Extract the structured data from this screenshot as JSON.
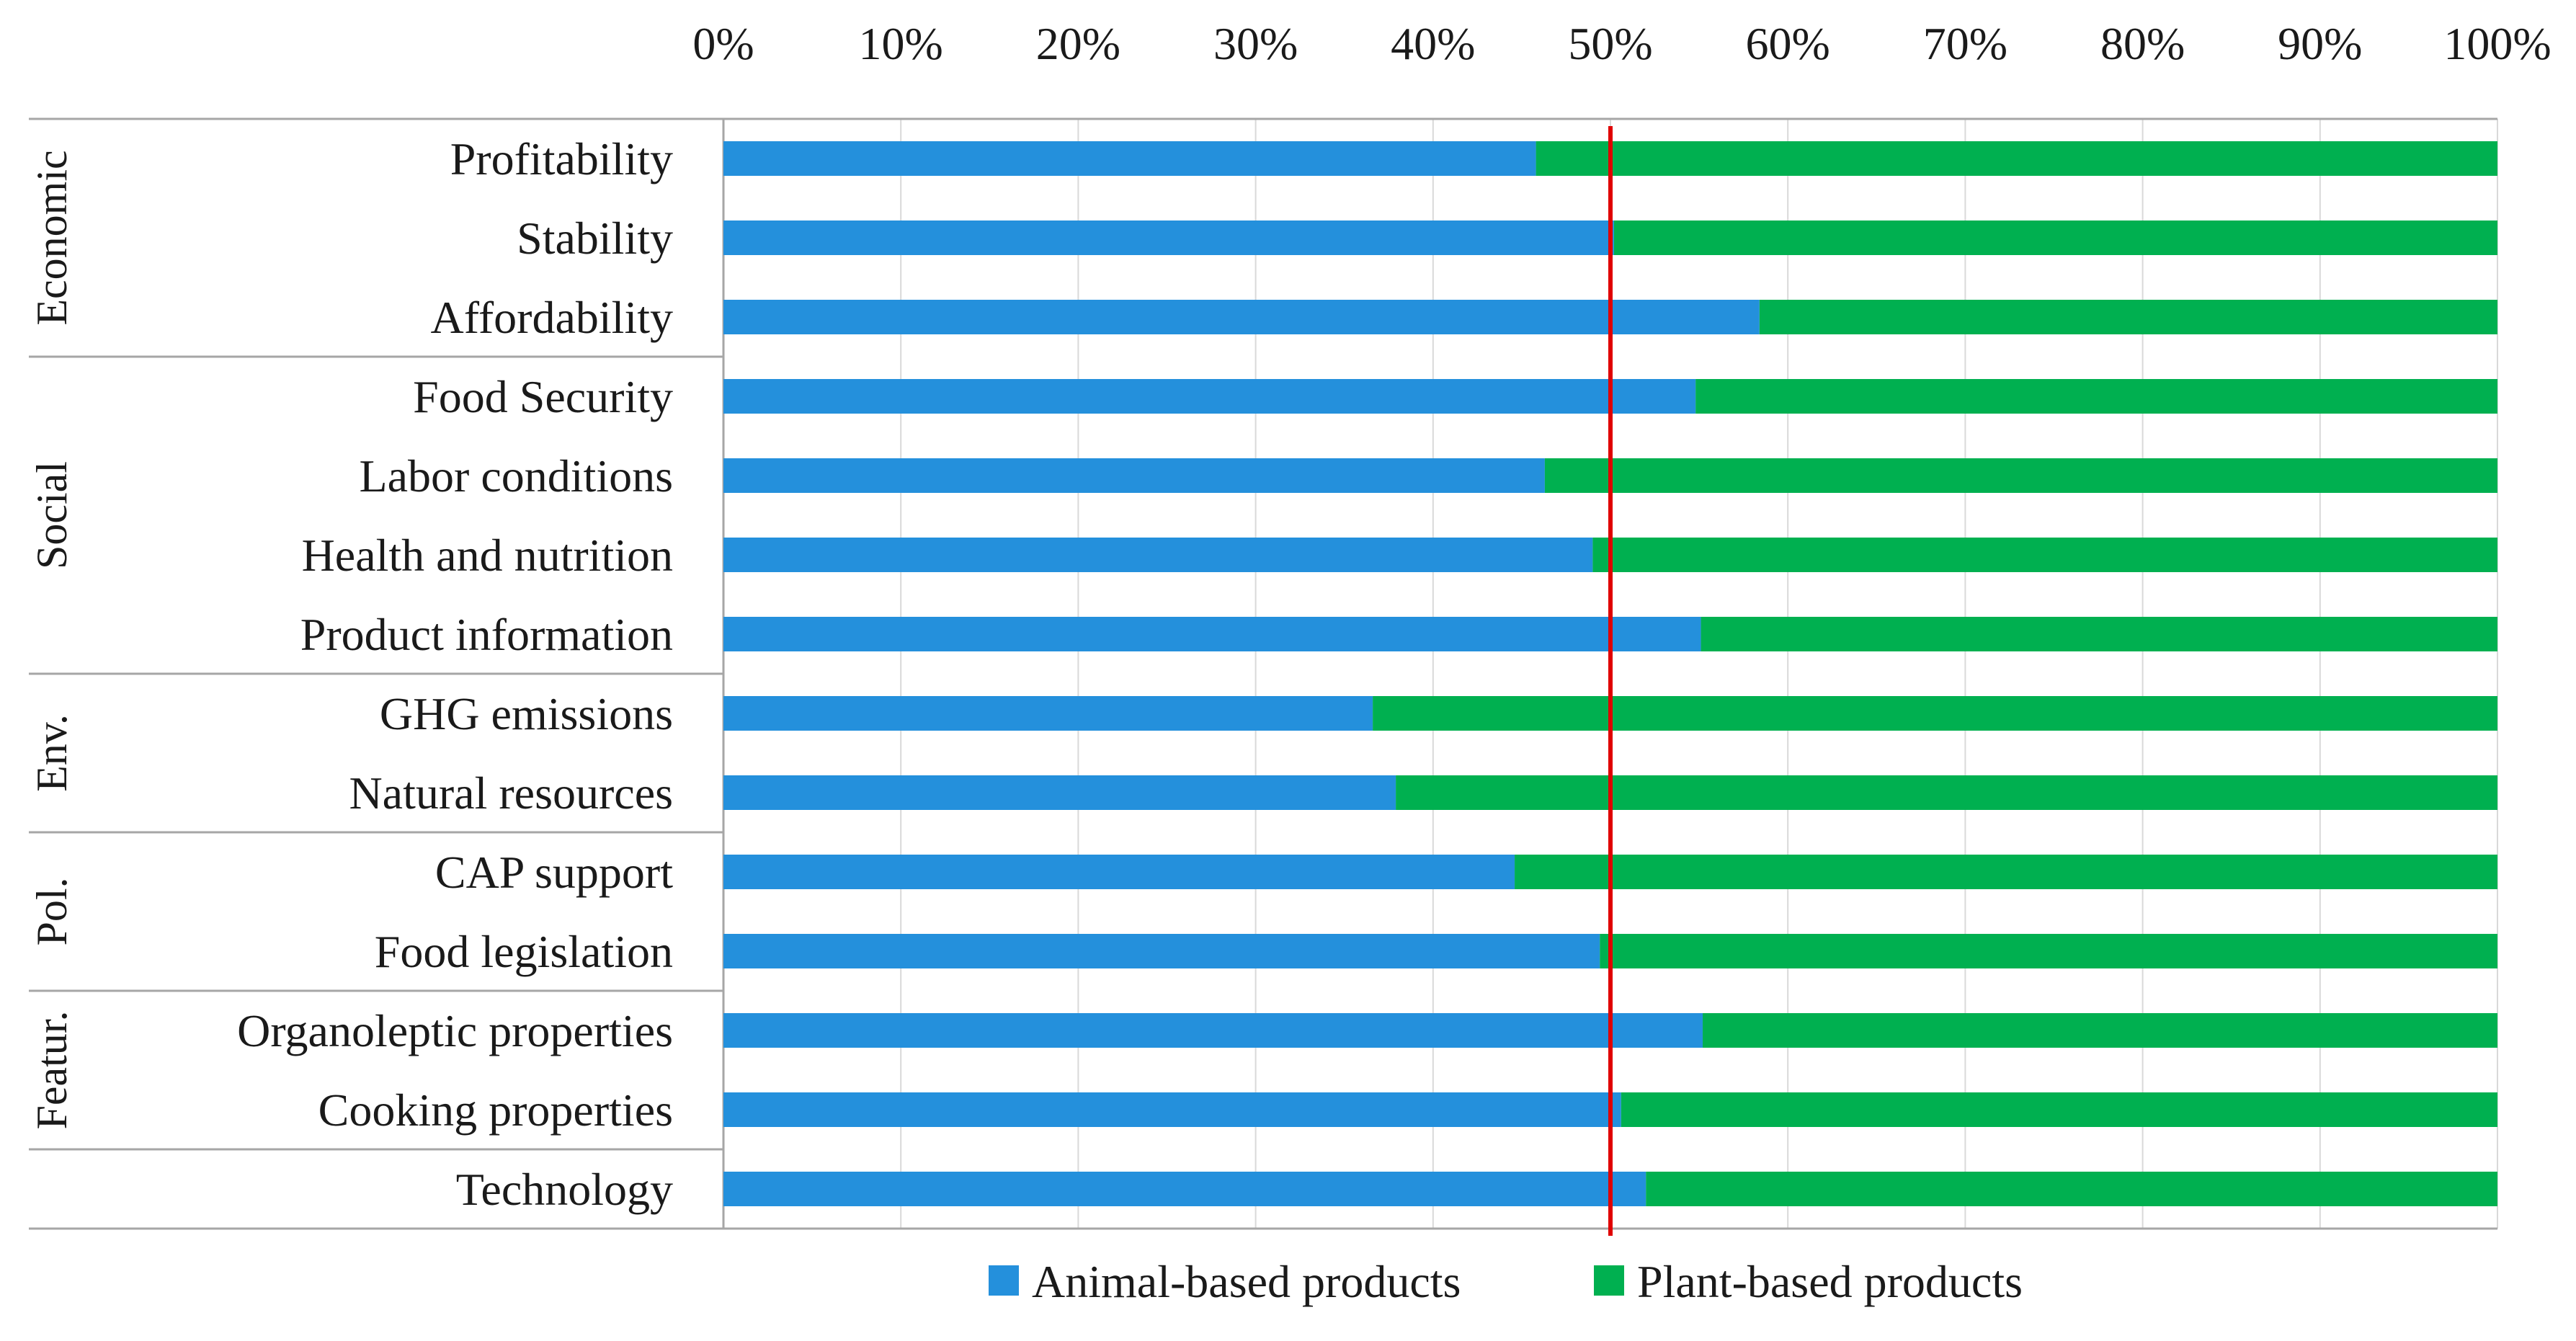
{
  "chart_data": {
    "type": "bar",
    "orientation": "horizontal",
    "stacked": true,
    "xlim": [
      0,
      100
    ],
    "x_ticks": [
      "0%",
      "10%",
      "20%",
      "30%",
      "40%",
      "50%",
      "60%",
      "70%",
      "80%",
      "90%",
      "100%"
    ],
    "categories": [
      "Profitability",
      "Stability",
      "Affordability",
      "Food Security",
      "Labor conditions",
      "Health and nutrition",
      "Product information",
      "GHG emissions",
      "Natural resources",
      "CAP support",
      "Food legislation",
      "Organoleptic properties",
      "Cooking properties",
      "Technology"
    ],
    "groups": [
      {
        "label": "Economic",
        "count": 3
      },
      {
        "label": "Social",
        "count": 4
      },
      {
        "label": "Env.",
        "count": 2
      },
      {
        "label": "Pol.",
        "count": 2
      },
      {
        "label": "Featur.",
        "count": 2
      },
      {
        "label": "",
        "count": 1
      }
    ],
    "series": [
      {
        "name": "Animal-based products",
        "color": "#2490dc",
        "values": [
          45.8,
          50.2,
          58.4,
          54.8,
          46.3,
          49.0,
          55.1,
          36.6,
          37.9,
          44.6,
          49.4,
          55.2,
          50.6,
          52.0
        ]
      },
      {
        "name": "Plant-based products",
        "color": "#00b050",
        "values": [
          54.2,
          49.8,
          41.6,
          45.2,
          53.7,
          51.0,
          44.9,
          63.4,
          62.1,
          55.4,
          50.6,
          44.8,
          49.4,
          48.0
        ]
      }
    ],
    "reference_line": {
      "value": 50,
      "color": "#e00000"
    },
    "gridline_color": "#d9d9d9"
  }
}
